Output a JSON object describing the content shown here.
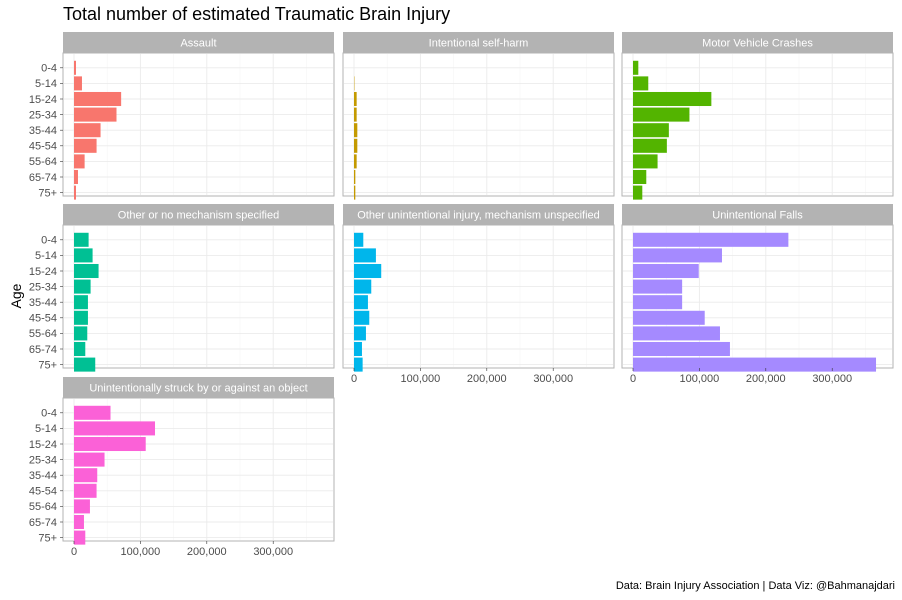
{
  "chart_data": {
    "type": "bar",
    "orientation": "horizontal",
    "title": "Total number of estimated Traumatic Brain Injury",
    "ylabel": "Age",
    "xlabel": "",
    "caption": "Data: Brain Injury Association | Data Viz: @Bahmanajdari",
    "categories": [
      "0-4",
      "5-14",
      "15-24",
      "25-34",
      "35-44",
      "45-54",
      "55-64",
      "65-74",
      "75+"
    ],
    "xlim": [
      0,
      375000
    ],
    "x_ticks": [
      0,
      100000,
      200000,
      300000
    ],
    "x_tick_labels": [
      "0",
      "100,000",
      "200,000",
      "300,000"
    ],
    "grid": true,
    "facets": [
      {
        "name": "Assault",
        "color": "#F8766D",
        "values": [
          3000,
          12000,
          71000,
          64000,
          40000,
          34000,
          16000,
          6000,
          3000
        ]
      },
      {
        "name": "Intentional self-harm",
        "color": "#C49A00",
        "values": [
          0,
          600,
          4000,
          4000,
          5000,
          5000,
          4000,
          2000,
          2000
        ]
      },
      {
        "name": "Motor Vehicle Crashes",
        "color": "#53B400",
        "values": [
          8000,
          23000,
          118000,
          85000,
          54000,
          51000,
          37000,
          20000,
          14000
        ]
      },
      {
        "name": "Other or no mechanism specified",
        "color": "#00C094",
        "values": [
          22000,
          28000,
          37000,
          25000,
          21000,
          21000,
          20000,
          17000,
          32000
        ]
      },
      {
        "name": "Other unintentional injury, mechanism unspecified",
        "color": "#00B6EB",
        "values": [
          14000,
          33000,
          41000,
          26000,
          21000,
          23000,
          18000,
          12000,
          13000
        ]
      },
      {
        "name": "Unintentional Falls",
        "color": "#A58AFF",
        "values": [
          234000,
          134000,
          99000,
          74000,
          74000,
          108000,
          131000,
          146000,
          366000
        ]
      },
      {
        "name": "Unintentionally struck by or against an object",
        "color": "#FB61D7",
        "values": [
          55000,
          122000,
          108000,
          46000,
          35000,
          34000,
          24000,
          15000,
          17000
        ]
      }
    ]
  }
}
